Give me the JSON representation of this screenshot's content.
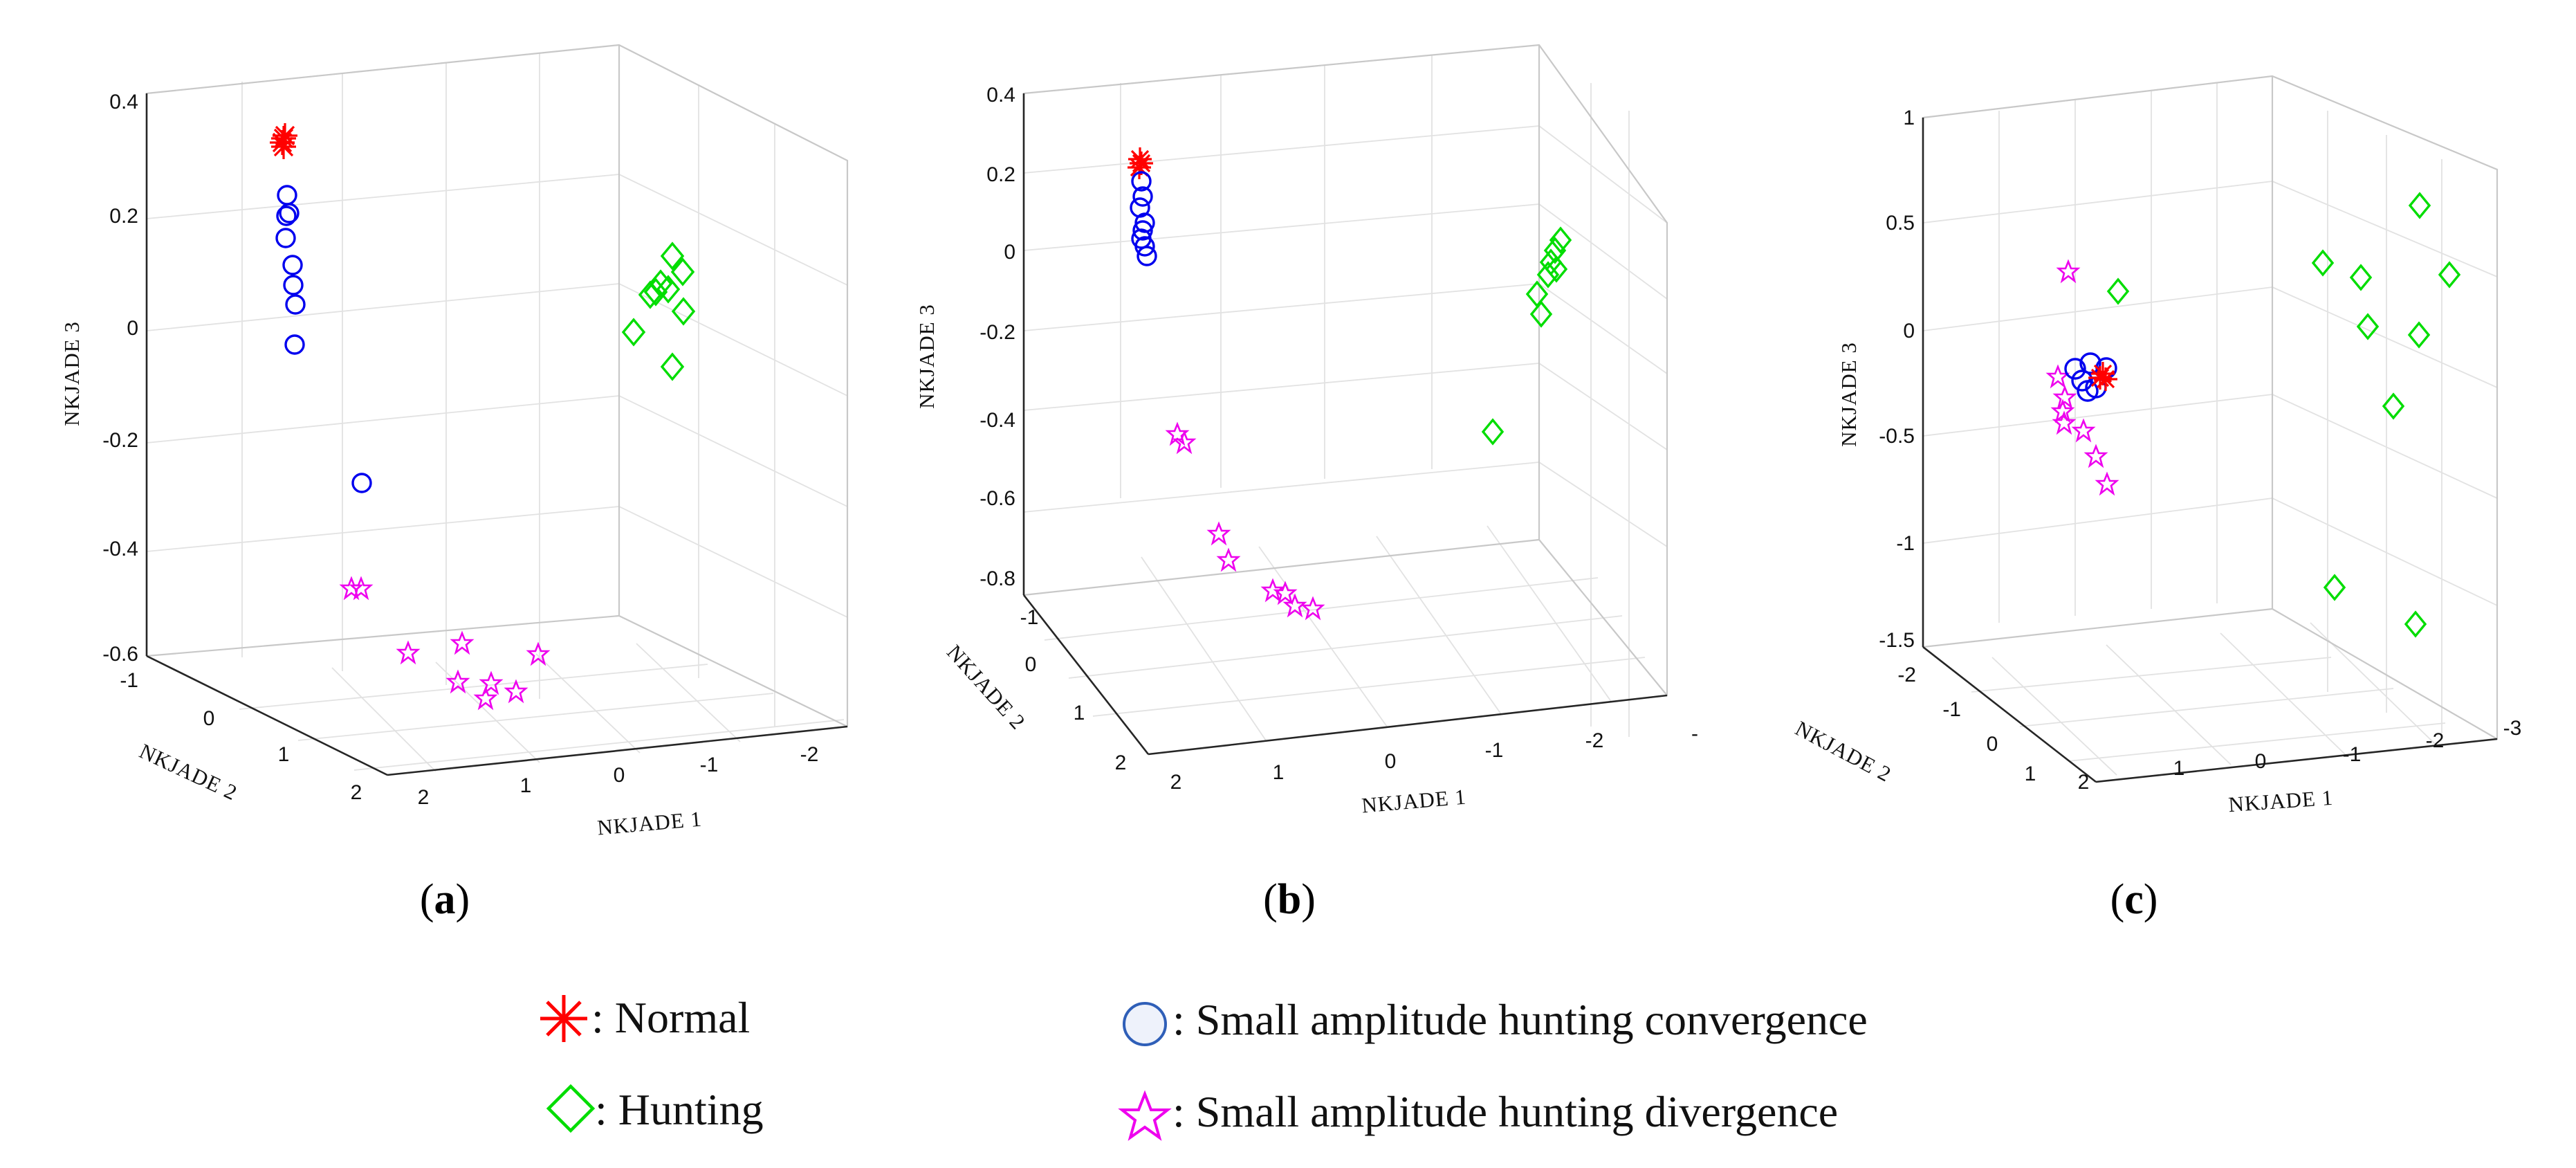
{
  "chart_data": [
    {
      "type": "scatter3d",
      "panel_label": "(a)",
      "panel_letter": "a",
      "xlabel": "NKJADE 1",
      "ylabel": "NKJADE 2",
      "zlabel": "NKJADE 3",
      "x_ticks": [
        "2",
        "1",
        "0",
        "-1",
        "-2"
      ],
      "y_ticks": [
        "-1",
        "0",
        "1",
        "2"
      ],
      "z_ticks": [
        "0.4",
        "0.2",
        "0",
        "-0.2",
        "-0.4",
        "-0.6"
      ],
      "zlim": [
        -0.6,
        0.4
      ],
      "series": [
        {
          "name": "Normal",
          "marker": "asterisk",
          "color": "#ff0000",
          "points": [
            [
              0.34
            ],
            [
              0.345
            ],
            [
              0.35
            ],
            [
              0.338
            ],
            [
              0.342
            ]
          ]
        },
        {
          "name": "Small amplitude hunting convergence",
          "marker": "circle",
          "color": "#0000ee",
          "points": [
            [
              0.24
            ],
            [
              0.21
            ],
            [
              0.205
            ],
            [
              0.165
            ],
            [
              0.115
            ],
            [
              0.075
            ],
            [
              0.04
            ],
            [
              -0.035
            ],
            [
              -0.29
            ]
          ]
        },
        {
          "name": "Hunting",
          "marker": "diamond",
          "color": "#00dd00",
          "points": [
            [
              0.13
            ],
            [
              0.105
            ],
            [
              0.085
            ],
            [
              0.065
            ],
            [
              0.06
            ],
            [
              0.055
            ],
            [
              0.03
            ],
            [
              -0.01
            ],
            [
              -0.08
            ]
          ]
        },
        {
          "name": "Small amplitude hunting divergence",
          "marker": "star",
          "color": "#ee00ee",
          "points": [
            [
              -0.48
            ],
            [
              -0.48
            ],
            [
              -0.6
            ],
            [
              -0.6
            ],
            [
              -0.6
            ],
            [
              -0.6
            ],
            [
              -0.6
            ],
            [
              -0.6
            ],
            [
              -0.6
            ]
          ]
        }
      ]
    },
    {
      "type": "scatter3d",
      "panel_label": "(b)",
      "panel_letter": "b",
      "xlabel": "NKJADE 1",
      "ylabel": "NKJADE 2",
      "zlabel": "NKJADE 3",
      "x_ticks": [
        "2",
        "1",
        "0",
        "-1",
        "-2",
        "-"
      ],
      "y_ticks": [
        "-1",
        "0",
        "1",
        "2"
      ],
      "z_ticks": [
        "0.4",
        "0.2",
        "0",
        "-0.2",
        "-0.4",
        "-0.6",
        "-0.8"
      ],
      "zlim": [
        -0.8,
        0.4
      ],
      "series": [
        {
          "name": "Normal",
          "marker": "asterisk",
          "color": "#ff0000",
          "points": [
            [
              0.25
            ],
            [
              0.26
            ],
            [
              0.255
            ]
          ]
        },
        {
          "name": "Small amplitude hunting convergence",
          "marker": "circle",
          "color": "#0000ee",
          "points": [
            [
              0.2
            ],
            [
              0.18
            ],
            [
              0.15
            ],
            [
              0.12
            ],
            [
              0.1
            ],
            [
              0.08
            ],
            [
              0.05
            ],
            [
              0.03
            ]
          ]
        },
        {
          "name": "Hunting",
          "marker": "diamond",
          "color": "#00dd00",
          "points": [
            [
              0.07
            ],
            [
              0.05
            ],
            [
              0.03
            ],
            [
              0.01
            ],
            [
              0.0
            ],
            [
              -0.06
            ],
            [
              -0.1
            ],
            [
              -0.4
            ]
          ]
        },
        {
          "name": "Small amplitude hunting divergence",
          "marker": "star",
          "color": "#ee00ee",
          "points": [
            [
              -0.4
            ],
            [
              -0.42
            ],
            [
              -0.65
            ],
            [
              -0.72
            ],
            [
              -0.8
            ],
            [
              -0.8
            ],
            [
              -0.8
            ],
            [
              -0.8
            ]
          ]
        }
      ]
    },
    {
      "type": "scatter3d",
      "panel_label": "(c)",
      "panel_letter": "c",
      "xlabel": "NKJADE 1",
      "ylabel": "NKJADE 2",
      "zlabel": "NKJADE 3",
      "x_ticks": [
        "2",
        "1",
        "0",
        "-1",
        "-2",
        "-3"
      ],
      "y_ticks": [
        "-2",
        "-1",
        "0",
        "1"
      ],
      "z_ticks": [
        "1",
        "0.5",
        "0",
        "-0.5",
        "-1",
        "-1.5"
      ],
      "zlim": [
        -1.5,
        1
      ],
      "series": [
        {
          "name": "Normal",
          "marker": "asterisk",
          "color": "#ff0000",
          "points": [
            [
              -0.22
            ],
            [
              -0.24
            ],
            [
              -0.21
            ]
          ]
        },
        {
          "name": "Small amplitude hunting convergence",
          "marker": "circle",
          "color": "#0000ee",
          "points": [
            [
              -0.18
            ],
            [
              -0.2
            ],
            [
              -0.22
            ],
            [
              -0.25
            ],
            [
              -0.28
            ],
            [
              -0.3
            ]
          ]
        },
        {
          "name": "Hunting",
          "marker": "diamond",
          "color": "#00dd00",
          "points": [
            [
              0.6
            ],
            [
              0.3
            ],
            [
              0.25
            ],
            [
              0.2
            ],
            [
              0.0
            ],
            [
              -0.02
            ],
            [
              -0.37
            ],
            [
              -1.25
            ],
            [
              -1.42
            ]
          ]
        },
        {
          "name": "Small amplitude hunting divergence",
          "marker": "star",
          "color": "#ee00ee",
          "points": [
            [
              0.28
            ],
            [
              -0.22
            ],
            [
              -0.32
            ],
            [
              -0.4
            ],
            [
              -0.45
            ],
            [
              -0.48
            ],
            [
              -0.6
            ],
            [
              -0.75
            ]
          ]
        }
      ]
    }
  ],
  "legend": {
    "items": [
      {
        "marker": "asterisk",
        "label": ": Normal"
      },
      {
        "marker": "diamond",
        "label": ": Hunting"
      },
      {
        "marker": "circle",
        "label": ": Small amplitude hunting convergence"
      },
      {
        "marker": "star",
        "label": ": Small amplitude hunting divergence"
      }
    ]
  }
}
